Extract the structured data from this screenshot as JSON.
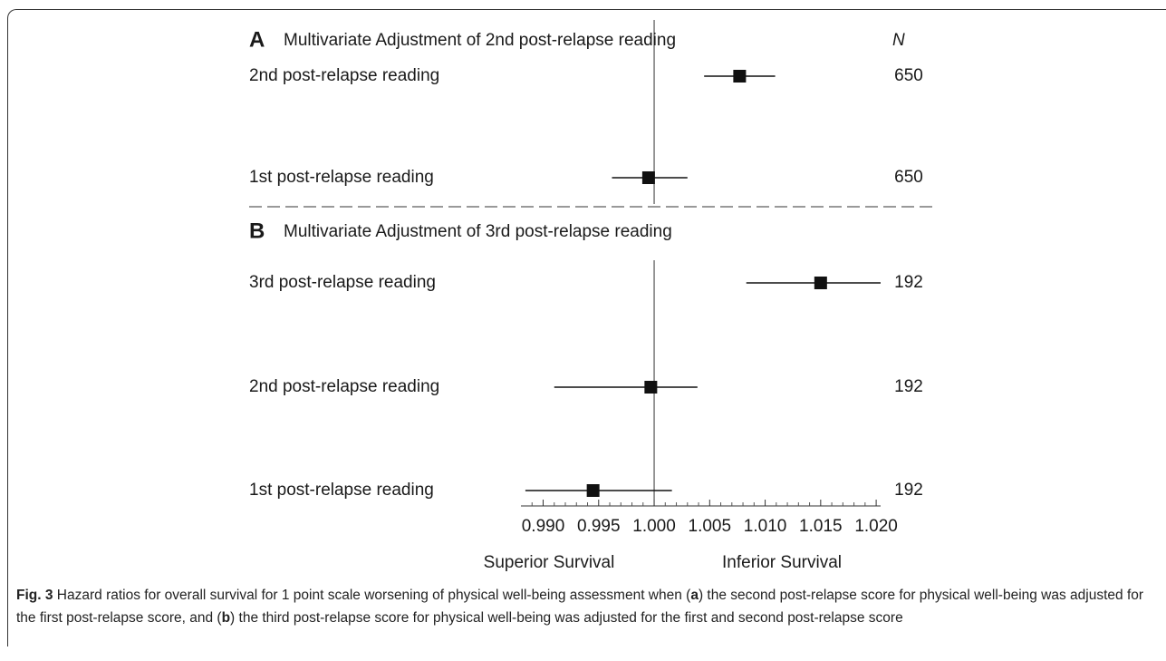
{
  "chart_data": {
    "type": "forest",
    "xlim": [
      0.988,
      1.0204
    ],
    "xticks": [
      {
        "value": 0.99,
        "label": "0.990"
      },
      {
        "value": 0.995,
        "label": "0.995"
      },
      {
        "value": 1,
        "label": "1.000"
      },
      {
        "value": 1.005,
        "label": "1.005"
      },
      {
        "value": 1.01,
        "label": "1.010"
      },
      {
        "value": 1.015,
        "label": "1.015"
      },
      {
        "value": 1.02,
        "label": "1.020"
      }
    ],
    "xminorticks": [
      0.989,
      0.991,
      0.992,
      0.993,
      0.994,
      0.996,
      0.997,
      0.998,
      0.999,
      1.001,
      1.002,
      1.003,
      1.004,
      1.006,
      1.007,
      1.008,
      1.009,
      1.011,
      1.012,
      1.013,
      1.014,
      1.016,
      1.017,
      1.018,
      1.019
    ],
    "reference_line": 1,
    "n_header": "N",
    "annotations": [
      "Superior Survival",
      "Inferior Survival"
    ],
    "panels": [
      {
        "letter": "A",
        "title": "Multivariate Adjustment of 2nd post-relapse reading",
        "rows": [
          {
            "label": "2nd post-relapse reading",
            "hr": 1.0077,
            "lo": 1.0045,
            "hi": 1.0109,
            "n": 650
          },
          {
            "label": "1st post-relapse reading",
            "hr": 0.9995,
            "lo": 0.9962,
            "hi": 1.003,
            "n": 650
          }
        ]
      },
      {
        "letter": "B",
        "title": "Multivariate Adjustment of 3rd post-relapse reading",
        "rows": [
          {
            "label": "3rd post-relapse reading",
            "hr": 1.015,
            "lo": 1.0083,
            "hi": 1.0204,
            "n": 192
          },
          {
            "label": "2nd post-relapse reading",
            "hr": 0.9997,
            "lo": 0.991,
            "hi": 1.0039,
            "n": 192
          },
          {
            "label": "1st post-relapse reading",
            "hr": 0.9945,
            "lo": 0.9884,
            "hi": 1.0016,
            "n": 192
          }
        ]
      }
    ]
  },
  "caption": {
    "label": "Fig. 3",
    "parts": [
      "Hazard ratios for overall survival for 1 point scale worsening of physical well-being assessment when (",
      "a",
      ") the second post-relapse score for physical well-being was adjusted for the first post-relapse score, and (",
      "b",
      ") the third post-relapse score for physical well-being was adjusted for the first and second post-relapse score"
    ]
  }
}
